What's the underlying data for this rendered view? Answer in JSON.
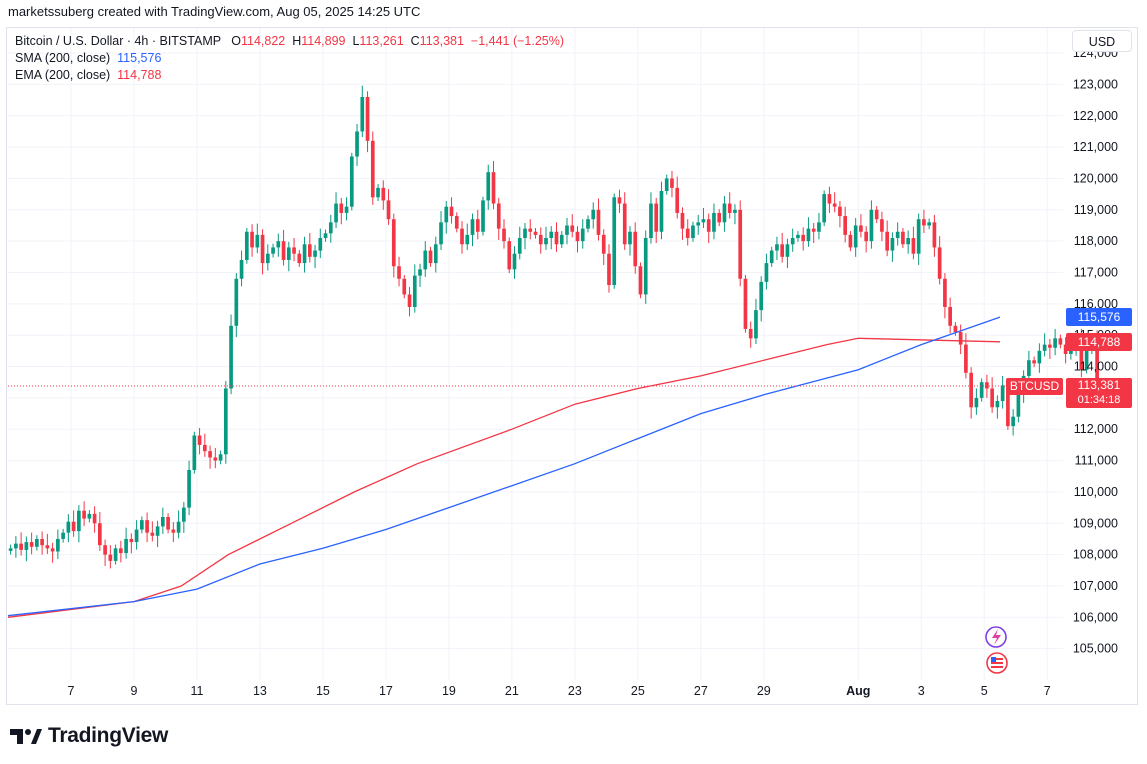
{
  "credit": "marketssuberg created with TradingView.com, Aug 05, 2025 14:25 UTC",
  "legend": {
    "symbol": "Bitcoin / U.S. Dollar · 4h · BITSTAMP",
    "o_label": "O",
    "o_value": "114,822",
    "h_label": "H",
    "h_value": "114,899",
    "l_label": "L",
    "l_value": "113,261",
    "c_label": "C",
    "c_value": "113,381",
    "change": "−1,441 (−1.25%)",
    "sma_label": "SMA (200, close)",
    "sma_value": "115,576",
    "ema_label": "EMA (200, close)",
    "ema_value": "114,788"
  },
  "currency": "USD",
  "brand": "TradingView",
  "colors": {
    "up": "#089981",
    "down": "#f23645",
    "sma": "#2962ff",
    "ema": "#f23645",
    "grid": "#f0f3fa"
  },
  "icons": [
    "lightning-replay-icon",
    "us-flag-icon"
  ],
  "chart_data": {
    "type": "candlestick",
    "interval": "4h",
    "y_ticks": [
      105000,
      106000,
      107000,
      108000,
      109000,
      110000,
      111000,
      112000,
      113000,
      114000,
      115000,
      116000,
      117000,
      118000,
      119000,
      120000,
      121000,
      122000,
      123000,
      124000
    ],
    "y_tick_labels": [
      "105,000",
      "106,000",
      "107,000",
      "108,000",
      "109,000",
      "110,000",
      "111,000",
      "112,000",
      "113,000",
      "114,000",
      "115,000",
      "116,000",
      "117,000",
      "118,000",
      "119,000",
      "120,000",
      "121,000",
      "122,000",
      "123,000",
      "124,000"
    ],
    "ylim": [
      104000,
      124800
    ],
    "xlim": [
      "2025-07-05T00:00",
      "2025-08-07T12:00"
    ],
    "x_ticks": [
      {
        "label": "7",
        "date": "2025-07-07T00:00"
      },
      {
        "label": "9",
        "date": "2025-07-09T00:00"
      },
      {
        "label": "11",
        "date": "2025-07-11T00:00"
      },
      {
        "label": "13",
        "date": "2025-07-13T00:00"
      },
      {
        "label": "15",
        "date": "2025-07-15T00:00"
      },
      {
        "label": "17",
        "date": "2025-07-17T00:00"
      },
      {
        "label": "19",
        "date": "2025-07-19T00:00"
      },
      {
        "label": "21",
        "date": "2025-07-21T00:00"
      },
      {
        "label": "23",
        "date": "2025-07-23T00:00"
      },
      {
        "label": "25",
        "date": "2025-07-25T00:00"
      },
      {
        "label": "27",
        "date": "2025-07-27T00:00"
      },
      {
        "label": "29",
        "date": "2025-07-29T00:00"
      },
      {
        "label": "Aug",
        "date": "2025-08-01T00:00",
        "bold": true
      },
      {
        "label": "3",
        "date": "2025-08-03T00:00"
      },
      {
        "label": "5",
        "date": "2025-08-05T00:00"
      },
      {
        "label": "7",
        "date": "2025-08-07T00:00"
      }
    ],
    "first_candle": "2025-07-05T00:00",
    "candle_hours": 4,
    "closes": [
      108200,
      108350,
      108150,
      108400,
      108250,
      108500,
      108300,
      108200,
      108100,
      108500,
      108700,
      109050,
      108750,
      109400,
      109150,
      109300,
      109000,
      108300,
      108000,
      107800,
      108200,
      108050,
      108500,
      108400,
      108800,
      109100,
      108700,
      108600,
      108900,
      109200,
      108800,
      108700,
      109050,
      109500,
      110700,
      111800,
      111500,
      111300,
      111100,
      111000,
      111200,
      113300,
      115300,
      116800,
      117400,
      118300,
      117800,
      118200,
      117300,
      117600,
      117800,
      118000,
      117400,
      117800,
      117600,
      117300,
      117900,
      117500,
      117700,
      118100,
      118250,
      118600,
      119200,
      118900,
      119100,
      120700,
      121500,
      122600,
      121200,
      119400,
      119700,
      119300,
      118700,
      117200,
      116800,
      116300,
      115900,
      116900,
      117100,
      117700,
      117300,
      117900,
      118600,
      119100,
      118800,
      118400,
      117900,
      118200,
      118700,
      118300,
      119300,
      120200,
      119200,
      118400,
      118000,
      117100,
      117600,
      118100,
      118400,
      118300,
      118200,
      117900,
      118100,
      118300,
      117900,
      118200,
      118500,
      118300,
      118000,
      118400,
      118700,
      119000,
      118200,
      117600,
      116600,
      119400,
      119200,
      117900,
      118300,
      117200,
      116300,
      118100,
      119200,
      118300,
      119600,
      120000,
      119700,
      118900,
      118400,
      118100,
      118500,
      118600,
      118700,
      118300,
      118900,
      118600,
      119200,
      118900,
      119000,
      116800,
      115200,
      114900,
      115800,
      116700,
      117300,
      117700,
      117900,
      117500,
      117900,
      118100,
      118200,
      118000,
      118400,
      118300,
      118600,
      119500,
      119200,
      119100,
      118800,
      118200,
      117800,
      118500,
      118300,
      118000,
      119000,
      118700,
      118300,
      117700,
      118100,
      118300,
      117900,
      118100,
      117600,
      118700,
      118500,
      118600,
      117800,
      116800,
      115900,
      115300,
      115100,
      114700,
      113800,
      112700,
      113000,
      113500,
      113300,
      112700,
      112900,
      113400,
      112100,
      112400,
      113200,
      113700,
      114200,
      114100,
      114500,
      114700,
      114600,
      114900,
      114700,
      114400,
      114700,
      114900,
      113900,
      114700,
      114800,
      113381
    ],
    "sma_points": [
      [
        "2025-07-05T00:00",
        106050
      ],
      [
        "2025-07-09T00:00",
        106500
      ],
      [
        "2025-07-11T00:00",
        106900
      ],
      [
        "2025-07-13T00:00",
        107700
      ],
      [
        "2025-07-15T00:00",
        108200
      ],
      [
        "2025-07-17T00:00",
        108800
      ],
      [
        "2025-07-19T00:00",
        109500
      ],
      [
        "2025-07-21T00:00",
        110200
      ],
      [
        "2025-07-23T00:00",
        110900
      ],
      [
        "2025-07-25T00:00",
        111700
      ],
      [
        "2025-07-27T00:00",
        112500
      ],
      [
        "2025-07-29T00:00",
        113100
      ],
      [
        "2025-08-01T00:00",
        113900
      ],
      [
        "2025-08-03T00:00",
        114700
      ],
      [
        "2025-08-05T12:00",
        115576
      ]
    ],
    "ema_points": [
      [
        "2025-07-05T00:00",
        106000
      ],
      [
        "2025-07-09T00:00",
        106500
      ],
      [
        "2025-07-10T12:00",
        107000
      ],
      [
        "2025-07-12T00:00",
        108000
      ],
      [
        "2025-07-14T00:00",
        109000
      ],
      [
        "2025-07-16T00:00",
        110000
      ],
      [
        "2025-07-18T00:00",
        110900
      ],
      [
        "2025-07-21T00:00",
        112000
      ],
      [
        "2025-07-23T00:00",
        112800
      ],
      [
        "2025-07-25T00:00",
        113300
      ],
      [
        "2025-07-27T00:00",
        113700
      ],
      [
        "2025-07-29T00:00",
        114200
      ],
      [
        "2025-07-31T00:00",
        114700
      ],
      [
        "2025-08-01T00:00",
        114900
      ],
      [
        "2025-08-05T12:00",
        114788
      ]
    ],
    "last_price": 113381,
    "price_tags": [
      {
        "name": "sma-price-tag",
        "value": 115576,
        "text": "115,576",
        "color": "#2962ff"
      },
      {
        "name": "ema-price-tag",
        "value": 114788,
        "text": "114,788",
        "color": "#f23645"
      },
      {
        "name": "last-price-tag",
        "value": 113381,
        "text": "113,381",
        "sub": "01:34:18",
        "color": "#f23645",
        "symbol": "BTCUSD"
      }
    ]
  }
}
